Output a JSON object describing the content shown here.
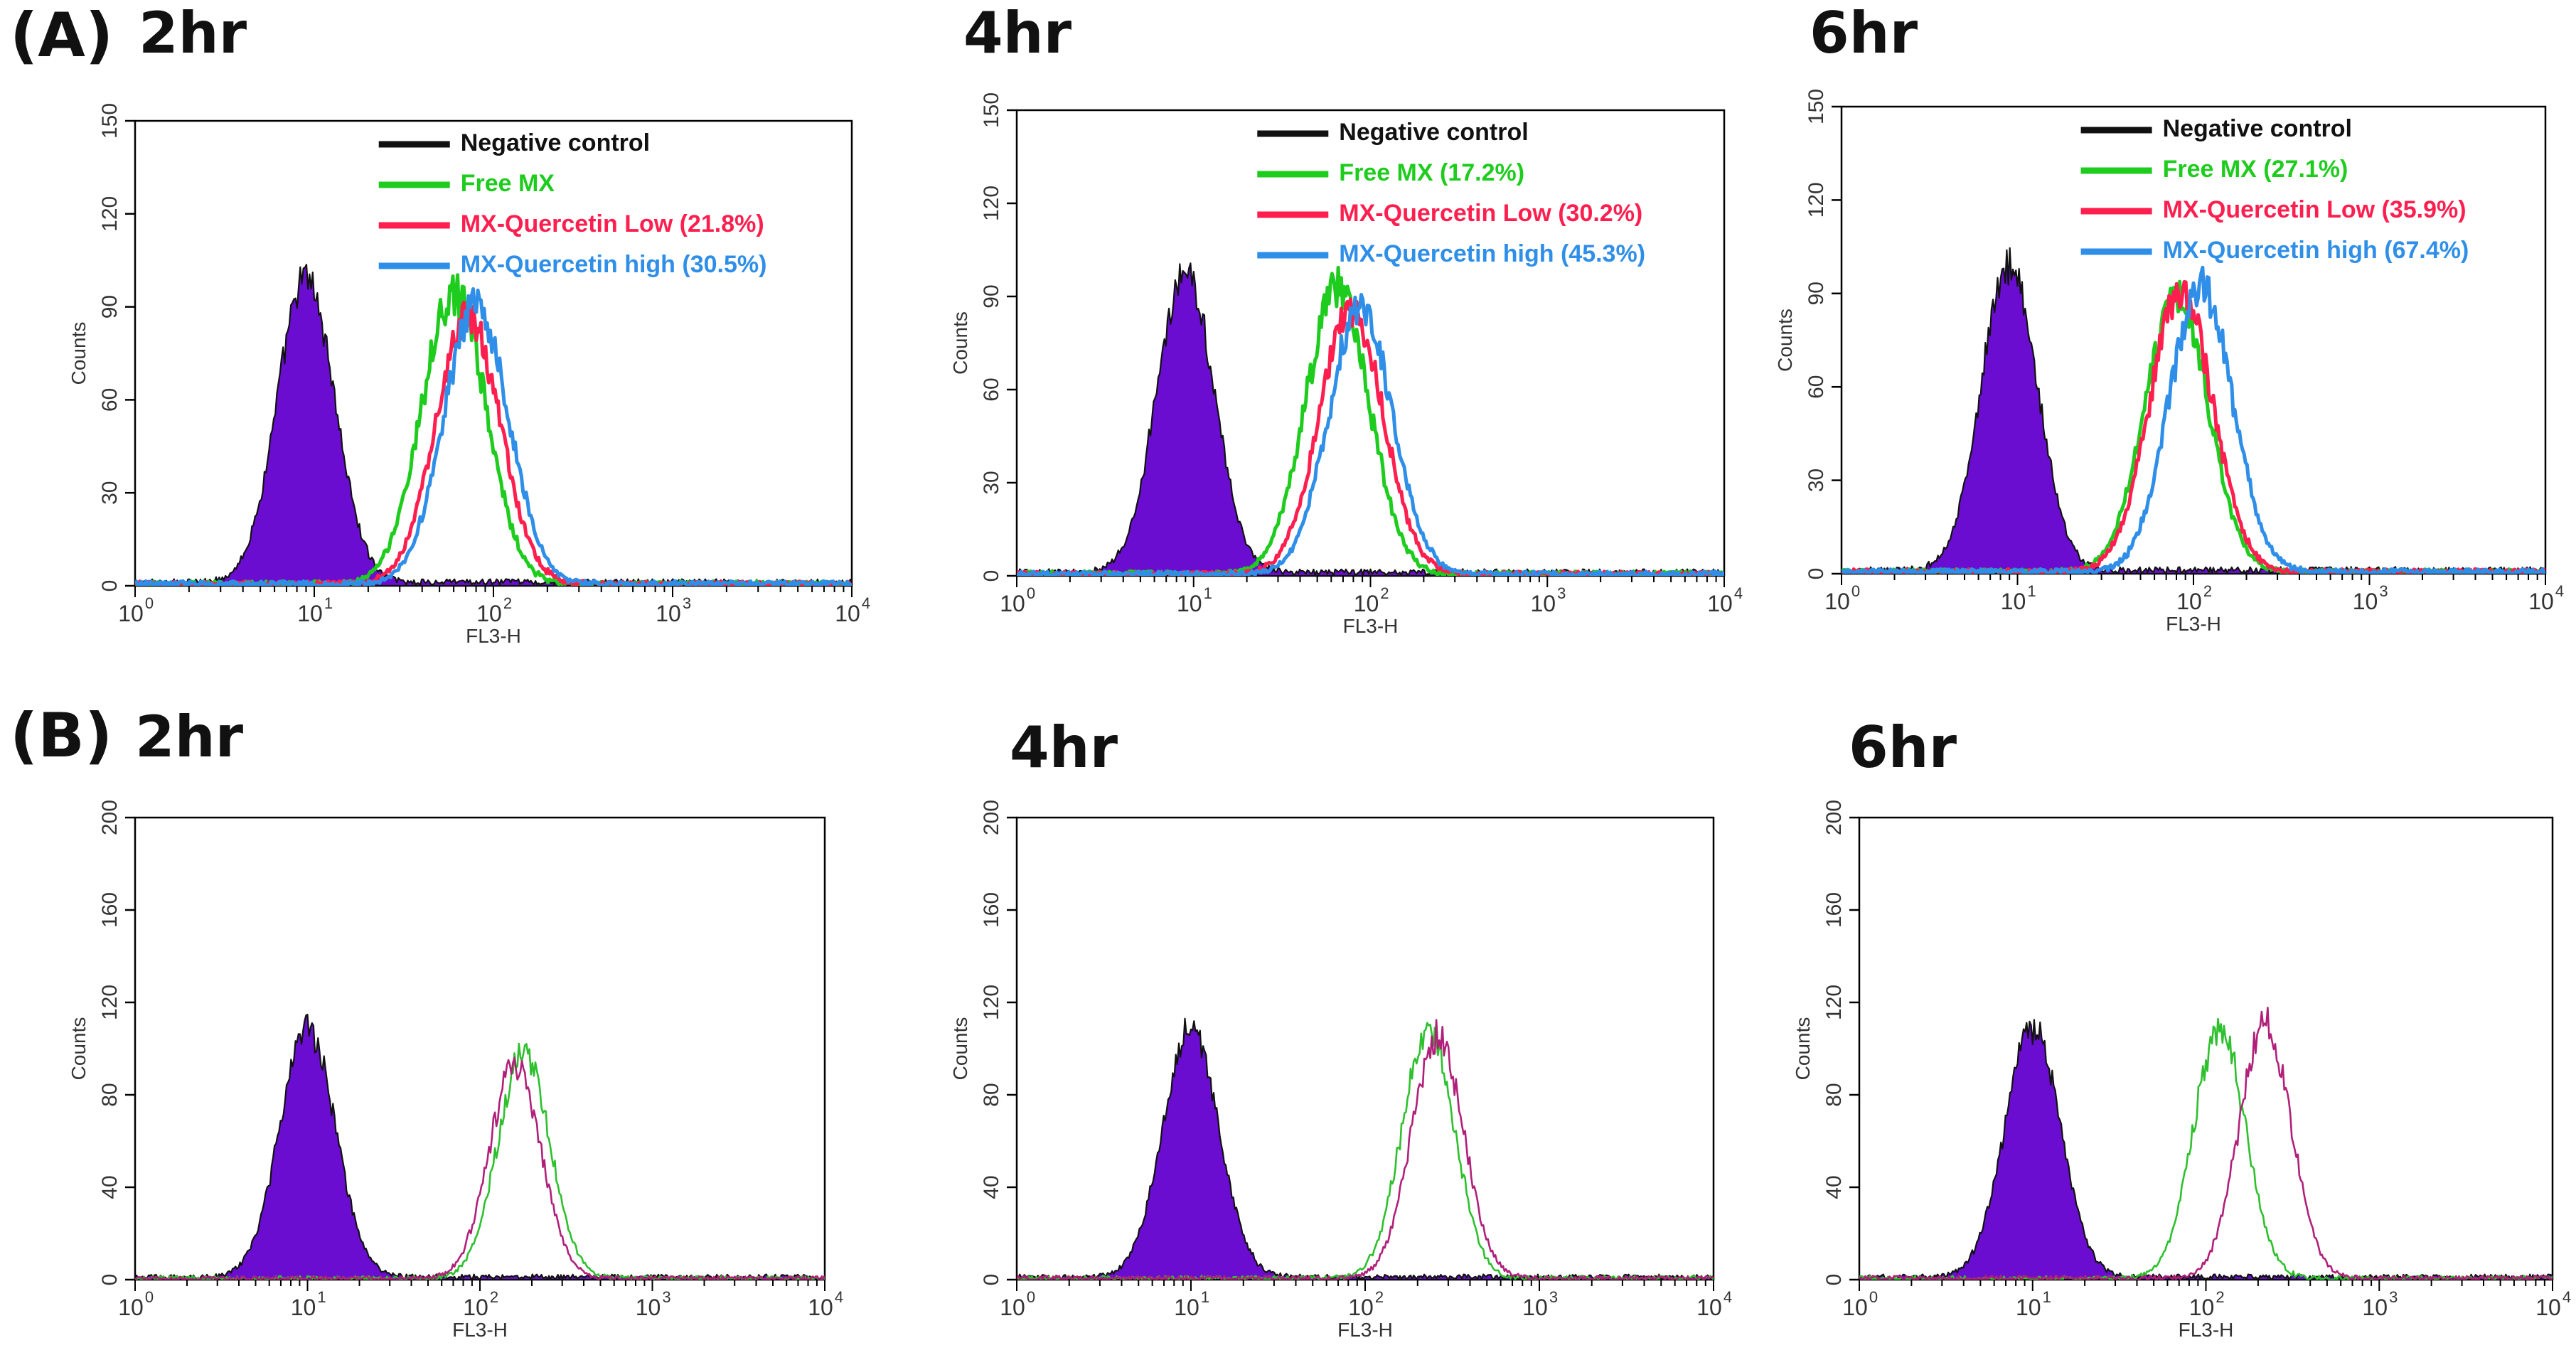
{
  "figure": {
    "row_labels": [
      "(A)",
      "(B)"
    ],
    "time_labels": [
      "2hr",
      "4hr",
      "6hr"
    ]
  },
  "colors": {
    "negative": "#6a0dd0",
    "negative_outline": "#111111",
    "free_mx": "#1ecc1e",
    "low": "#ff1f4f",
    "high": "#2f8fe8",
    "b_green": "#2ec02e",
    "b_magenta": "#b0207a"
  },
  "chart_data": [
    {
      "id": "A-2hr",
      "type": "area",
      "row": "A",
      "time": "2hr",
      "xlabel": "FL3-H",
      "ylabel": "Counts",
      "x_scale": "log",
      "xlim": [
        1,
        10000
      ],
      "ylim": [
        0,
        150
      ],
      "yticks": [
        0,
        30,
        60,
        90,
        120,
        150
      ],
      "xticks": [
        "10^0",
        "10^1",
        "10^2",
        "10^3",
        "10^4"
      ],
      "legend": [
        "Negative control",
        "Free MX",
        "MX-Quercetin Low (21.8%)",
        "MX-Quercetin high (30.5%)"
      ],
      "series": [
        {
          "name": "Negative control",
          "style": "filled",
          "peak_x": 9,
          "peak_y": 98
        },
        {
          "name": "Free MX",
          "peak_x": 60,
          "peak_y": 94
        },
        {
          "name": "MX-Quercetin Low",
          "peak_x": 72,
          "peak_y": 86
        },
        {
          "name": "MX-Quercetin high",
          "peak_x": 80,
          "peak_y": 90
        }
      ]
    },
    {
      "id": "A-4hr",
      "type": "area",
      "row": "A",
      "time": "4hr",
      "xlabel": "FL3-H",
      "ylabel": "Counts",
      "x_scale": "log",
      "xlim": [
        1,
        10000
      ],
      "ylim": [
        0,
        150
      ],
      "yticks": [
        0,
        30,
        60,
        90,
        120,
        150
      ],
      "xticks": [
        "10^0",
        "10^1",
        "10^2",
        "10^3",
        "10^4"
      ],
      "legend": [
        "Negative control",
        "Free MX (17.2%)",
        "MX-Quercetin Low (30.2%)",
        "MX-Quercetin high (45.3%)"
      ],
      "series": [
        {
          "name": "Negative control",
          "style": "filled",
          "peak_x": 9,
          "peak_y": 98
        },
        {
          "name": "Free MX",
          "peak_x": 65,
          "peak_y": 92
        },
        {
          "name": "MX-Quercetin Low",
          "peak_x": 78,
          "peak_y": 85
        },
        {
          "name": "MX-Quercetin high",
          "peak_x": 88,
          "peak_y": 86
        }
      ]
    },
    {
      "id": "A-6hr",
      "type": "area",
      "row": "A",
      "time": "6hr",
      "xlabel": "FL3-H",
      "ylabel": "Counts",
      "x_scale": "log",
      "xlim": [
        1,
        10000
      ],
      "ylim": [
        0,
        150
      ],
      "yticks": [
        0,
        30,
        60,
        90,
        120,
        150
      ],
      "xticks": [
        "10^0",
        "10^1",
        "10^2",
        "10^3",
        "10^4"
      ],
      "legend": [
        "Negative control",
        "Free MX (27.1%)",
        "MX-Quercetin Low (35.9%)",
        "MX-Quercetin high (67.4%)"
      ],
      "series": [
        {
          "name": "Negative control",
          "style": "filled",
          "peak_x": 9,
          "peak_y": 98
        },
        {
          "name": "Free MX",
          "peak_x": 80,
          "peak_y": 88
        },
        {
          "name": "MX-Quercetin Low",
          "peak_x": 85,
          "peak_y": 90
        },
        {
          "name": "MX-Quercetin high",
          "peak_x": 110,
          "peak_y": 92
        }
      ]
    },
    {
      "id": "B-2hr",
      "type": "area",
      "row": "B",
      "time": "2hr",
      "xlabel": "FL3-H",
      "ylabel": "Counts",
      "x_scale": "log",
      "xlim": [
        1,
        10000
      ],
      "ylim": [
        0,
        200
      ],
      "yticks": [
        0,
        40,
        80,
        120,
        160,
        200
      ],
      "xticks": [
        "10^0",
        "10^1",
        "10^2",
        "10^3",
        "10^4"
      ],
      "legend": [],
      "series": [
        {
          "name": "Negative control",
          "style": "filled",
          "peak_x": 10,
          "peak_y": 108
        },
        {
          "name": "Green",
          "peak_x": 180,
          "peak_y": 98
        },
        {
          "name": "Magenta",
          "peak_x": 160,
          "peak_y": 92
        }
      ]
    },
    {
      "id": "B-4hr",
      "type": "area",
      "row": "B",
      "time": "4hr",
      "xlabel": "FL3-H",
      "ylabel": "Counts",
      "x_scale": "log",
      "xlim": [
        1,
        10000
      ],
      "ylim": [
        0,
        200
      ],
      "yticks": [
        0,
        40,
        80,
        120,
        160,
        200
      ],
      "xticks": [
        "10^0",
        "10^1",
        "10^2",
        "10^3",
        "10^4"
      ],
      "legend": [],
      "series": [
        {
          "name": "Negative control",
          "style": "filled",
          "peak_x": 10,
          "peak_y": 108
        },
        {
          "name": "Green",
          "peak_x": 230,
          "peak_y": 108
        },
        {
          "name": "Magenta",
          "peak_x": 260,
          "peak_y": 104
        }
      ]
    },
    {
      "id": "B-6hr",
      "type": "area",
      "row": "B",
      "time": "6hr",
      "xlabel": "FL3-H",
      "ylabel": "Counts",
      "x_scale": "log",
      "xlim": [
        1,
        10000
      ],
      "ylim": [
        0,
        200
      ],
      "yticks": [
        0,
        40,
        80,
        120,
        160,
        200
      ],
      "xticks": [
        "10^0",
        "10^1",
        "10^2",
        "10^3",
        "10^4"
      ],
      "legend": [],
      "series": [
        {
          "name": "Negative control",
          "style": "filled",
          "peak_x": 10,
          "peak_y": 108
        },
        {
          "name": "Green",
          "peak_x": 120,
          "peak_y": 108
        },
        {
          "name": "Magenta",
          "peak_x": 220,
          "peak_y": 110
        }
      ]
    }
  ]
}
